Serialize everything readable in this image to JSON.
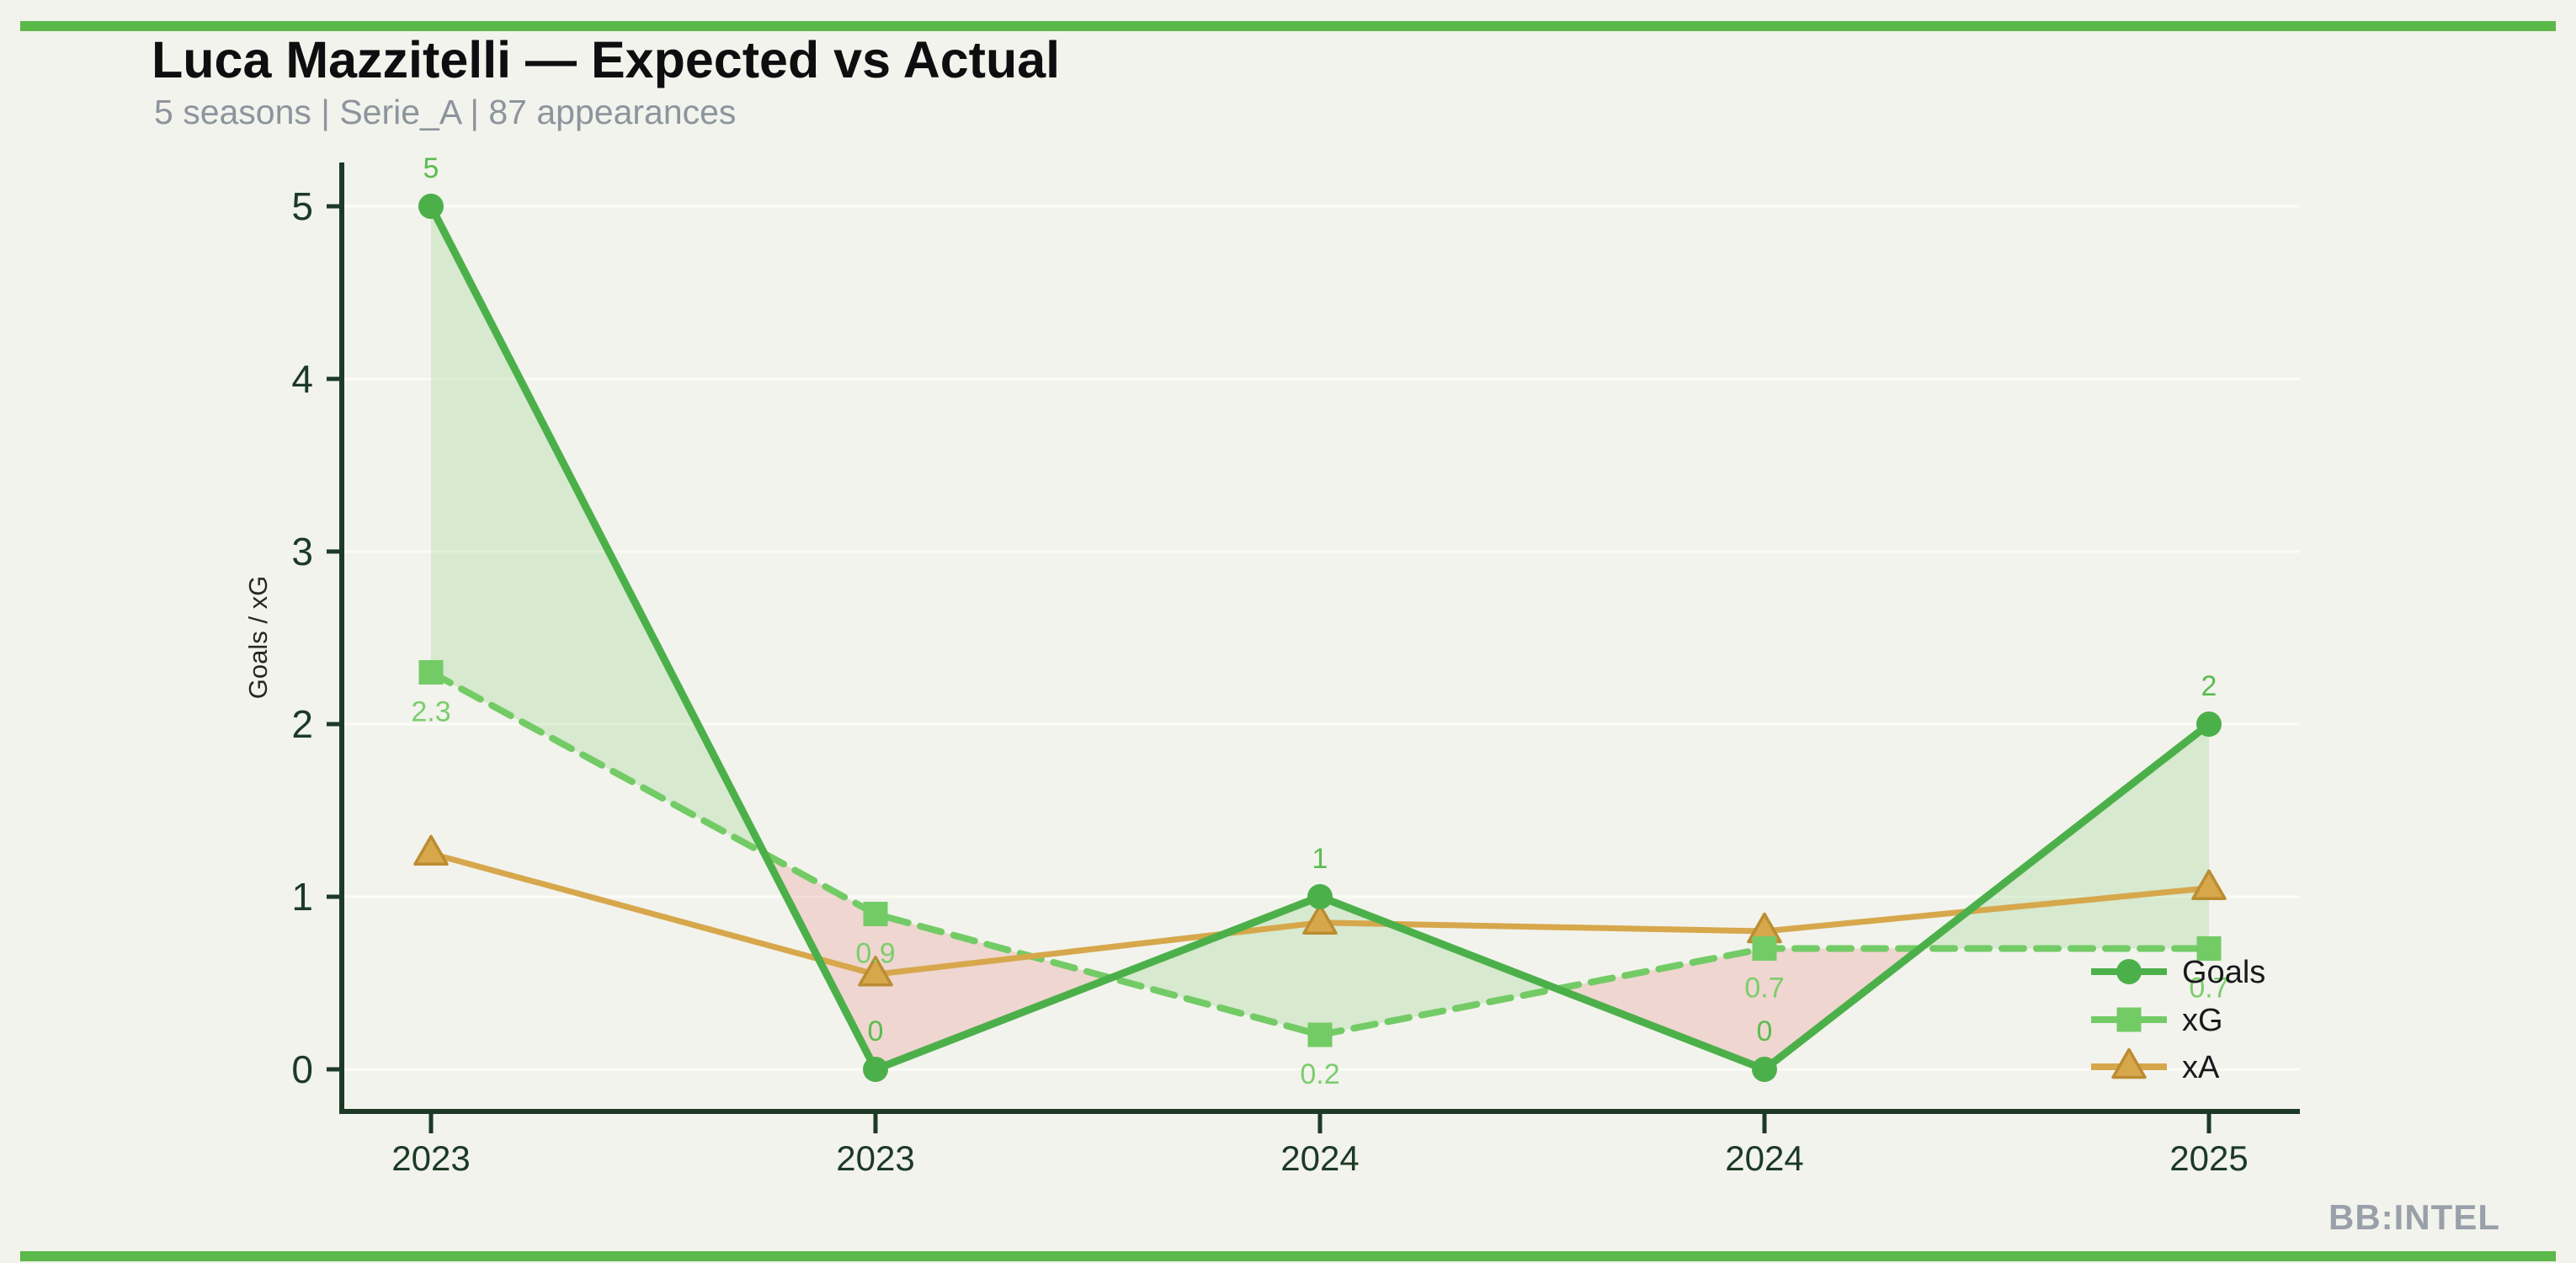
{
  "page": {
    "background": "#f2f3ec",
    "accent_bar_color": "#5bb84a"
  },
  "header": {
    "title": "Luca Mazzitelli — Expected vs Actual",
    "subtitle": "5 seasons | Serie_A | 87 appearances"
  },
  "footer": {
    "brand": "BB:INTEL"
  },
  "chart_data": {
    "type": "line",
    "title": "Luca Mazzitelli — Expected vs Actual",
    "categories": [
      "2023",
      "2023",
      "2024",
      "2024",
      "2025"
    ],
    "series": [
      {
        "name": "Goals",
        "values": [
          5,
          0,
          1,
          0,
          2
        ],
        "point_labels": [
          "5",
          "0",
          "1",
          "0",
          "2"
        ],
        "label_side": "above",
        "label_color": "#5abd4f",
        "color": "#4cb04a",
        "marker": "circle",
        "line_style": "solid"
      },
      {
        "name": "xG",
        "values": [
          2.3,
          0.9,
          0.2,
          0.7,
          0.7
        ],
        "point_labels": [
          "2.3",
          "0.9",
          "0.2",
          "0.7",
          "0.7"
        ],
        "label_side": "below",
        "label_color": "#7ccd6e",
        "color": "#73cb66",
        "marker": "square",
        "line_style": "dashed"
      },
      {
        "name": "xA",
        "values": [
          1.25,
          0.55,
          0.85,
          0.8,
          1.05
        ],
        "point_labels": null,
        "label_side": null,
        "label_color": null,
        "color": "#d7a74c",
        "marker": "triangle",
        "marker_edge_color": "#bb8c31",
        "line_style": "solid"
      }
    ],
    "xlabel": "",
    "ylabel": "Goals / xG",
    "ylim": [
      0,
      5
    ],
    "yticks": [
      0,
      1,
      2,
      3,
      4,
      5
    ],
    "grid": "horizontal",
    "grid_color": "#fbfcf6",
    "axis_color": "#1c3a25",
    "tick_label_color": "#1c3a25",
    "fill_between": {
      "series_a": "Goals",
      "series_b": "xG",
      "above_color": "rgba(140,204,123,0.26)",
      "below_color": "rgba(233,138,132,0.27)"
    },
    "legend": {
      "position": "lower right",
      "entries": [
        "Goals",
        "xG",
        "xA"
      ],
      "text_color": "#17191c"
    }
  }
}
